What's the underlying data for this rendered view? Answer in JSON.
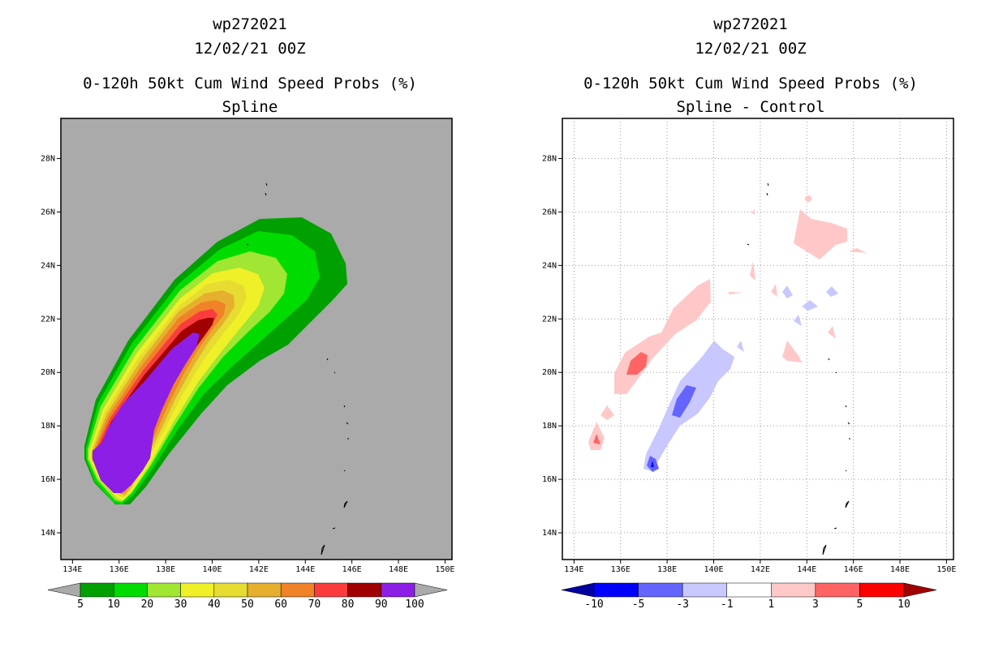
{
  "chart_data": [
    {
      "type": "contour",
      "panel": "left",
      "titles": [
        "wp272021",
        "12/02/21 00Z",
        "0-120h 50kt Cum Wind Speed Probs (%)",
        "Spline"
      ],
      "xlim": [
        133.5,
        150.3
      ],
      "ylim": [
        13.0,
        29.5
      ],
      "x_ticks": [
        134,
        136,
        138,
        140,
        142,
        144,
        146,
        148,
        150
      ],
      "x_tick_labels": [
        "134E",
        "136E",
        "138E",
        "140E",
        "142E",
        "144E",
        "146E",
        "148E",
        "150E"
      ],
      "y_ticks": [
        14,
        16,
        18,
        20,
        22,
        24,
        26,
        28
      ],
      "y_tick_labels": [
        "14N",
        "16N",
        "18N",
        "20N",
        "22N",
        "24N",
        "26N",
        "28N"
      ],
      "background": "#aaaaaa",
      "grid": false,
      "colorbar": {
        "levels": [
          "5",
          "10",
          "20",
          "30",
          "40",
          "50",
          "60",
          "70",
          "80",
          "90",
          "100"
        ],
        "colors": [
          "#00a000",
          "#00dc00",
          "#a0e632",
          "#f0f028",
          "#e6dc32",
          "#e6af2d",
          "#f08228",
          "#fa3c3c",
          "#a00000",
          "#8c1ee6"
        ],
        "extend": "both"
      },
      "plume": {
        "description_levels": [
          5,
          10,
          20,
          30,
          40,
          50,
          60,
          70,
          80,
          90
        ],
        "center_lon": [
          135.2,
          136.2,
          137.5,
          138.8,
          140.0,
          141.2,
          142.4,
          143.6
        ],
        "center_lat": [
          16.0,
          17.8,
          19.6,
          21.2,
          22.6,
          23.8,
          24.5,
          24.6
        ]
      }
    },
    {
      "type": "contour",
      "panel": "right",
      "titles": [
        "wp272021",
        "12/02/21 00Z",
        "0-120h 50kt Cum Wind Speed Probs (%)",
        "Spline - Control"
      ],
      "xlim": [
        133.5,
        150.3
      ],
      "ylim": [
        13.0,
        29.5
      ],
      "x_ticks": [
        134,
        136,
        138,
        140,
        142,
        144,
        146,
        148,
        150
      ],
      "x_tick_labels": [
        "134E",
        "136E",
        "138E",
        "140E",
        "142E",
        "144E",
        "146E",
        "148E",
        "150E"
      ],
      "y_ticks": [
        14,
        16,
        18,
        20,
        22,
        24,
        26,
        28
      ],
      "y_tick_labels": [
        "14N",
        "16N",
        "18N",
        "20N",
        "22N",
        "24N",
        "26N",
        "28N"
      ],
      "background": "#ffffff",
      "grid": true,
      "colorbar": {
        "levels": [
          "-10",
          "-5",
          "-3",
          "-1",
          "1",
          "3",
          "5",
          "10"
        ],
        "colors": [
          "#0000a0",
          "#0000ff",
          "#6464ff",
          "#c8c8ff",
          "#ffffff",
          "#ffc8c8",
          "#ff6464",
          "#ff0000",
          "#a00000"
        ],
        "extend": "both"
      }
    }
  ]
}
